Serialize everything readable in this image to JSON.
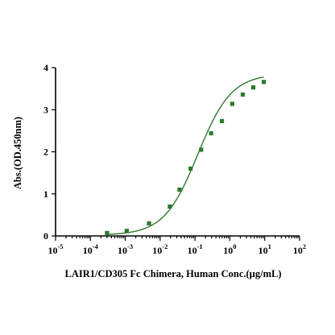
{
  "chart_data": {
    "type": "scatter",
    "title": "",
    "xlabel": "LAIR1/CD305 Fc Chimera, Human Conc.(µg/mL)",
    "ylabel": "Abs.(OD.450nm)",
    "x_scale": "log",
    "xlim": [
      1e-05,
      100
    ],
    "ylim": [
      0,
      4
    ],
    "x_ticks": [
      {
        "base": "10",
        "exp": "-5"
      },
      {
        "base": "10",
        "exp": "-4"
      },
      {
        "base": "10",
        "exp": "-3"
      },
      {
        "base": "10",
        "exp": "-2"
      },
      {
        "base": "10",
        "exp": "-1"
      },
      {
        "base": "10",
        "exp": "0"
      },
      {
        "base": "10",
        "exp": "1"
      },
      {
        "base": "10",
        "exp": "2"
      }
    ],
    "y_ticks": [
      "0",
      "1",
      "2",
      "3",
      "4"
    ],
    "grid": false,
    "legend": "none",
    "colors": {
      "series": "#2d7a2d",
      "marker": "#2d7a2d",
      "axis": "#000000"
    },
    "series": [
      {
        "marker": "square",
        "fit": "4PL",
        "x": [
          0.0003,
          0.0011,
          0.0048,
          0.019,
          0.036,
          0.075,
          0.15,
          0.29,
          0.59,
          1.17,
          2.35,
          4.7,
          9.4
        ],
        "y": [
          0.07,
          0.12,
          0.3,
          0.7,
          1.1,
          1.6,
          2.05,
          2.44,
          2.73,
          3.14,
          3.36,
          3.53,
          3.66
        ]
      }
    ]
  }
}
